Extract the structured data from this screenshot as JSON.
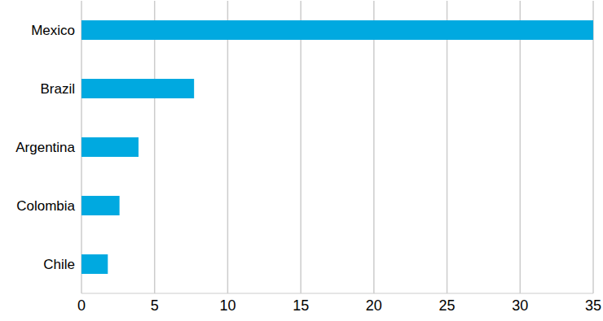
{
  "chart_data": {
    "type": "bar",
    "orientation": "horizontal",
    "categories": [
      "Mexico",
      "Brazil",
      "Argentina",
      "Colombia",
      "Chile"
    ],
    "values": [
      35,
      7.7,
      3.9,
      2.6,
      1.8
    ],
    "color": "#00a9e0",
    "xlim": [
      0,
      35
    ],
    "xticks": [
      0,
      5,
      10,
      15,
      20,
      25,
      30,
      35
    ],
    "grid": true
  }
}
